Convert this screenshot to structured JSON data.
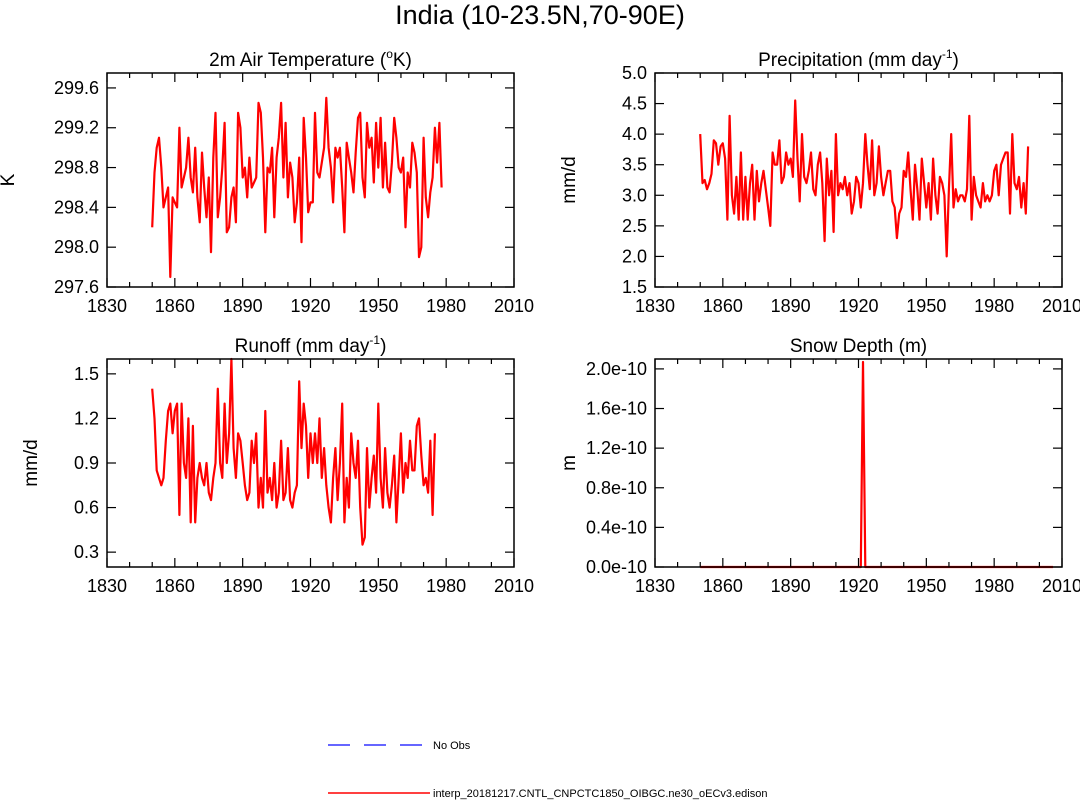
{
  "figure": {
    "title": "India (10-23.5N,70-90E)",
    "series_color": "#ff0000",
    "obs_color": "#3333ff"
  },
  "legend": {
    "items": [
      {
        "label": "No Obs",
        "style": "dashed",
        "color": "#3333ff"
      },
      {
        "label": "interp_20181217.CNTL_CNPCTC1850_OIBGC.ne30_oECv3.edison",
        "style": "solid",
        "color": "#ff0000"
      }
    ]
  },
  "chart_data": [
    {
      "type": "line",
      "title": "2m Air Temperature (",
      "title_sup": "o",
      "title_after": "K)",
      "xlabel": "",
      "ylabel": "K",
      "xlim": [
        1830,
        2010
      ],
      "ylim": [
        297.6,
        299.75
      ],
      "xticks": [
        1830,
        1860,
        1890,
        1920,
        1950,
        1980,
        2010
      ],
      "xtick_labels": [
        "1830",
        "1860",
        "1890",
        "1920",
        "1950",
        "1980",
        "2010"
      ],
      "yticks": [
        297.6,
        298.0,
        298.4,
        298.8,
        299.2,
        299.6
      ],
      "ytick_labels": [
        "297.6",
        "298.0",
        "298.4",
        "298.8",
        "299.2",
        "299.6"
      ],
      "series": [
        {
          "name": "interp_20181217.CNTL_CNPCTC1850_OIBGC.ne30_oECv3.edison",
          "x_start": 1850,
          "values": [
            298.2,
            298.75,
            299.0,
            299.1,
            298.8,
            298.4,
            298.5,
            298.6,
            297.7,
            298.5,
            298.45,
            298.4,
            299.2,
            298.6,
            298.7,
            298.8,
            299.1,
            298.7,
            298.55,
            299.0,
            298.5,
            298.25,
            298.95,
            298.6,
            298.3,
            298.7,
            297.95,
            298.9,
            299.35,
            298.3,
            298.5,
            298.8,
            299.25,
            298.15,
            298.2,
            298.5,
            298.6,
            298.25,
            299.35,
            299.2,
            298.7,
            298.8,
            298.5,
            298.9,
            298.6,
            298.65,
            298.7,
            299.45,
            299.35,
            298.9,
            298.15,
            298.8,
            298.75,
            299.0,
            298.3,
            298.9,
            299.1,
            299.45,
            298.7,
            299.25,
            298.5,
            298.85,
            298.7,
            298.25,
            298.45,
            298.9,
            298.05,
            299.3,
            298.9,
            298.35,
            298.45,
            298.45,
            299.35,
            298.75,
            298.7,
            298.85,
            299.0,
            299.5,
            299.0,
            298.8,
            298.45,
            299.0,
            298.9,
            299.0,
            298.6,
            298.15,
            299.05,
            298.9,
            298.75,
            298.55,
            298.95,
            299.3,
            299.35,
            298.7,
            298.5,
            299.25,
            299.0,
            299.1,
            298.65,
            299.25,
            298.8,
            299.3,
            298.6,
            299.05,
            298.6,
            298.55,
            298.85,
            299.3,
            299.1,
            298.8,
            298.75,
            298.9,
            298.2,
            298.75,
            298.6,
            299.05,
            298.95,
            298.75,
            297.9,
            298.0,
            299.1,
            298.5,
            298.3,
            298.55,
            298.7,
            299.2,
            298.85,
            299.25,
            298.6
          ]
        }
      ]
    },
    {
      "type": "line",
      "title": "Precipitation (mm day",
      "title_sup": "-1",
      "title_after": ")",
      "xlabel": "",
      "ylabel": "mm/d",
      "xlim": [
        1830,
        2010
      ],
      "ylim": [
        1.5,
        5.0
      ],
      "xticks": [
        1830,
        1860,
        1890,
        1920,
        1950,
        1980,
        2010
      ],
      "xtick_labels": [
        "1830",
        "1860",
        "1890",
        "1920",
        "1950",
        "1980",
        "2010"
      ],
      "yticks": [
        1.5,
        2.0,
        2.5,
        3.0,
        3.5,
        4.0,
        4.5,
        5.0
      ],
      "ytick_labels": [
        "1.5",
        "2.0",
        "2.5",
        "3.0",
        "3.5",
        "4.0",
        "4.5",
        "5.0"
      ],
      "series": [
        {
          "name": "interp_20181217.CNTL_CNPCTC1850_OIBGC.ne30_oECv3.edison",
          "x_start": 1850,
          "values": [
            4.0,
            3.2,
            3.25,
            3.1,
            3.2,
            3.35,
            3.9,
            3.85,
            3.5,
            3.8,
            3.85,
            3.6,
            2.6,
            4.3,
            3.0,
            2.7,
            3.3,
            2.6,
            3.7,
            2.6,
            3.3,
            2.6,
            3.2,
            3.5,
            2.6,
            3.4,
            2.9,
            3.2,
            3.4,
            3.1,
            2.8,
            2.5,
            3.7,
            3.5,
            3.5,
            3.9,
            3.2,
            3.3,
            3.7,
            3.5,
            3.6,
            3.3,
            4.55,
            3.6,
            2.9,
            4.0,
            3.3,
            3.2,
            3.4,
            3.7,
            3.1,
            3.0,
            3.5,
            3.7,
            3.2,
            2.25,
            3.6,
            3.0,
            3.4,
            2.4,
            4.0,
            3.0,
            3.2,
            3.1,
            3.3,
            3.0,
            3.2,
            2.7,
            2.9,
            3.3,
            3.2,
            2.8,
            3.2,
            4.0,
            3.5,
            3.1,
            3.9,
            3.0,
            3.2,
            3.8,
            3.3,
            3.0,
            3.2,
            3.4,
            3.4,
            2.9,
            2.8,
            2.3,
            2.7,
            2.8,
            3.4,
            3.3,
            3.7,
            3.1,
            2.6,
            3.5,
            3.1,
            2.6,
            3.6,
            3.2,
            2.8,
            3.2,
            2.6,
            3.6,
            3.0,
            2.7,
            3.3,
            3.2,
            3.0,
            2.0,
            3.1,
            4.0,
            2.8,
            3.1,
            2.9,
            3.0,
            3.0,
            2.9,
            3.1,
            4.3,
            2.6,
            3.3,
            3.0,
            2.9,
            2.8,
            3.2,
            2.9,
            3.0,
            2.9,
            3.0,
            3.4,
            3.5,
            3.0,
            3.5,
            3.6,
            3.7,
            3.7,
            2.7,
            4.0,
            3.2,
            3.1,
            3.3,
            2.8,
            3.2,
            2.7,
            3.8
          ]
        }
      ]
    },
    {
      "type": "line",
      "title": "Runoff (mm day",
      "title_sup": "-1",
      "title_after": ")",
      "xlabel": "",
      "ylabel": "mm/d",
      "xlim": [
        1830,
        2010
      ],
      "ylim": [
        0.2,
        1.6
      ],
      "xticks": [
        1830,
        1860,
        1890,
        1920,
        1950,
        1980,
        2010
      ],
      "xtick_labels": [
        "1830",
        "1860",
        "1890",
        "1920",
        "1950",
        "1980",
        "2010"
      ],
      "yticks": [
        0.3,
        0.6,
        0.9,
        1.2,
        1.5
      ],
      "ytick_labels": [
        "0.3",
        "0.6",
        "0.9",
        "1.2",
        "1.5"
      ],
      "series": [
        {
          "name": "interp_20181217.CNTL_CNPCTC1850_OIBGC.ne30_oECv3.edison",
          "x_start": 1850,
          "values": [
            1.4,
            1.2,
            0.85,
            0.8,
            0.75,
            0.8,
            1.05,
            1.25,
            1.3,
            1.1,
            1.25,
            1.3,
            0.55,
            1.3,
            0.9,
            0.8,
            1.2,
            0.5,
            1.15,
            0.5,
            0.8,
            0.9,
            0.8,
            0.75,
            0.9,
            0.7,
            0.65,
            0.8,
            0.9,
            1.4,
            0.9,
            0.8,
            1.3,
            0.9,
            1.1,
            1.6,
            1.0,
            0.8,
            1.1,
            1.05,
            0.9,
            0.75,
            0.65,
            0.7,
            1.05,
            0.9,
            1.1,
            0.6,
            0.8,
            0.6,
            1.25,
            0.7,
            0.8,
            0.65,
            0.9,
            0.6,
            0.7,
            1.05,
            0.65,
            0.7,
            1.0,
            0.65,
            0.6,
            0.7,
            0.75,
            1.45,
            1.0,
            1.3,
            1.15,
            0.8,
            1.1,
            0.9,
            1.1,
            0.9,
            1.2,
            0.8,
            1.0,
            0.75,
            0.6,
            0.5,
            0.8,
            1.0,
            0.65,
            0.9,
            1.3,
            0.5,
            0.8,
            0.6,
            1.1,
            0.9,
            0.8,
            1.05,
            0.6,
            0.35,
            0.4,
            1.0,
            0.6,
            0.8,
            0.95,
            0.7,
            1.3,
            0.8,
            0.6,
            1.0,
            0.7,
            0.6,
            0.75,
            0.95,
            0.5,
            0.8,
            1.1,
            0.7,
            0.9,
            0.8,
            1.05,
            0.85,
            0.85,
            1.15,
            1.2,
            0.95,
            0.75,
            0.8,
            0.7,
            1.05,
            0.55,
            1.1
          ]
        }
      ]
    },
    {
      "type": "line",
      "title": "Snow Depth (m)",
      "title_sup": "",
      "title_after": "",
      "xlabel": "",
      "ylabel": "m",
      "xlim": [
        1830,
        2010
      ],
      "ylim": [
        0.0,
        2.1e-10
      ],
      "xticks": [
        1830,
        1860,
        1890,
        1920,
        1950,
        1980,
        2010
      ],
      "xtick_labels": [
        "1830",
        "1860",
        "1890",
        "1920",
        "1950",
        "1980",
        "2010"
      ],
      "yticks": [
        0,
        4e-11,
        8e-11,
        1.2e-10,
        1.6e-10,
        2e-10
      ],
      "ytick_labels": [
        "0.0e-10",
        "0.4e-10",
        "0.8e-10",
        "1.2e-10",
        "1.6e-10",
        "2.0e-10"
      ],
      "series": [
        {
          "name": "interp_20181217.CNTL_CNPCTC1850_OIBGC.ne30_oECv3.edison",
          "x": [
            1850,
            1921,
            1922,
            1923,
            2006
          ],
          "values": [
            0,
            0,
            2.07e-10,
            0,
            0
          ]
        }
      ]
    }
  ]
}
